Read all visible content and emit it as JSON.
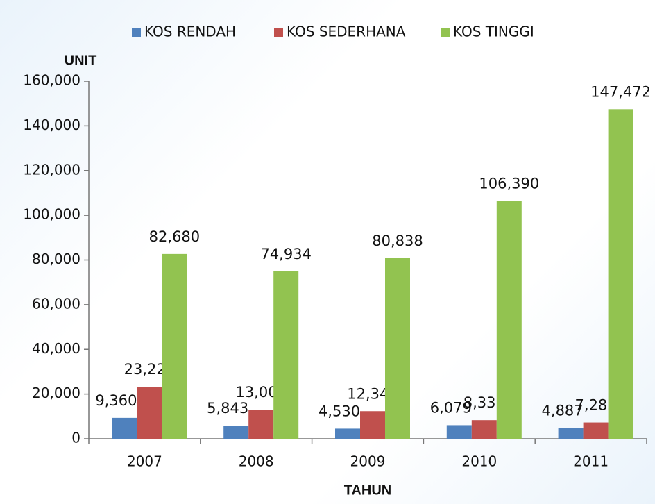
{
  "chart_data": {
    "type": "bar",
    "y_label": "UNIT",
    "x_label": "TAHUN",
    "categories": [
      "2007",
      "2008",
      "2009",
      "2010",
      "2011"
    ],
    "series": [
      {
        "name": "KOS RENDAH",
        "color": "#4f81bd",
        "values": [
          9360,
          5843,
          4530,
          6079,
          4887
        ],
        "value_labels": [
          "9,360",
          "5,843",
          "4,530",
          "6,079",
          "4,887"
        ]
      },
      {
        "name": "KOS SEDERHANA",
        "color": "#c0504d",
        "values": [
          23227,
          13007,
          12348,
          8332,
          7283
        ],
        "value_labels": [
          "23,227",
          "13,007",
          "12,348",
          "8,332",
          "7,283"
        ]
      },
      {
        "name": "KOS TINGGI",
        "color": "#92c350",
        "values": [
          82680,
          74934,
          80838,
          106390,
          147472
        ],
        "value_labels": [
          "82,680",
          "74,934",
          "80,838",
          "106,390",
          "147,472"
        ]
      }
    ],
    "ylim": [
      0,
      160000
    ],
    "yticks": [
      0,
      {
        "value": 20000,
        "label": "20,000"
      },
      {
        "value": 40000,
        "label": "40,000"
      },
      {
        "value": 60000,
        "label": "60,000"
      },
      {
        "value": 80000,
        "label": "80,000"
      },
      {
        "value": 100000,
        "label": "100,000"
      },
      {
        "value": 120000,
        "label": "120,000"
      },
      {
        "value": 140000,
        "label": "140,000"
      },
      {
        "value": 160000,
        "label": "160,000"
      }
    ],
    "legend": "top",
    "grid": false
  }
}
